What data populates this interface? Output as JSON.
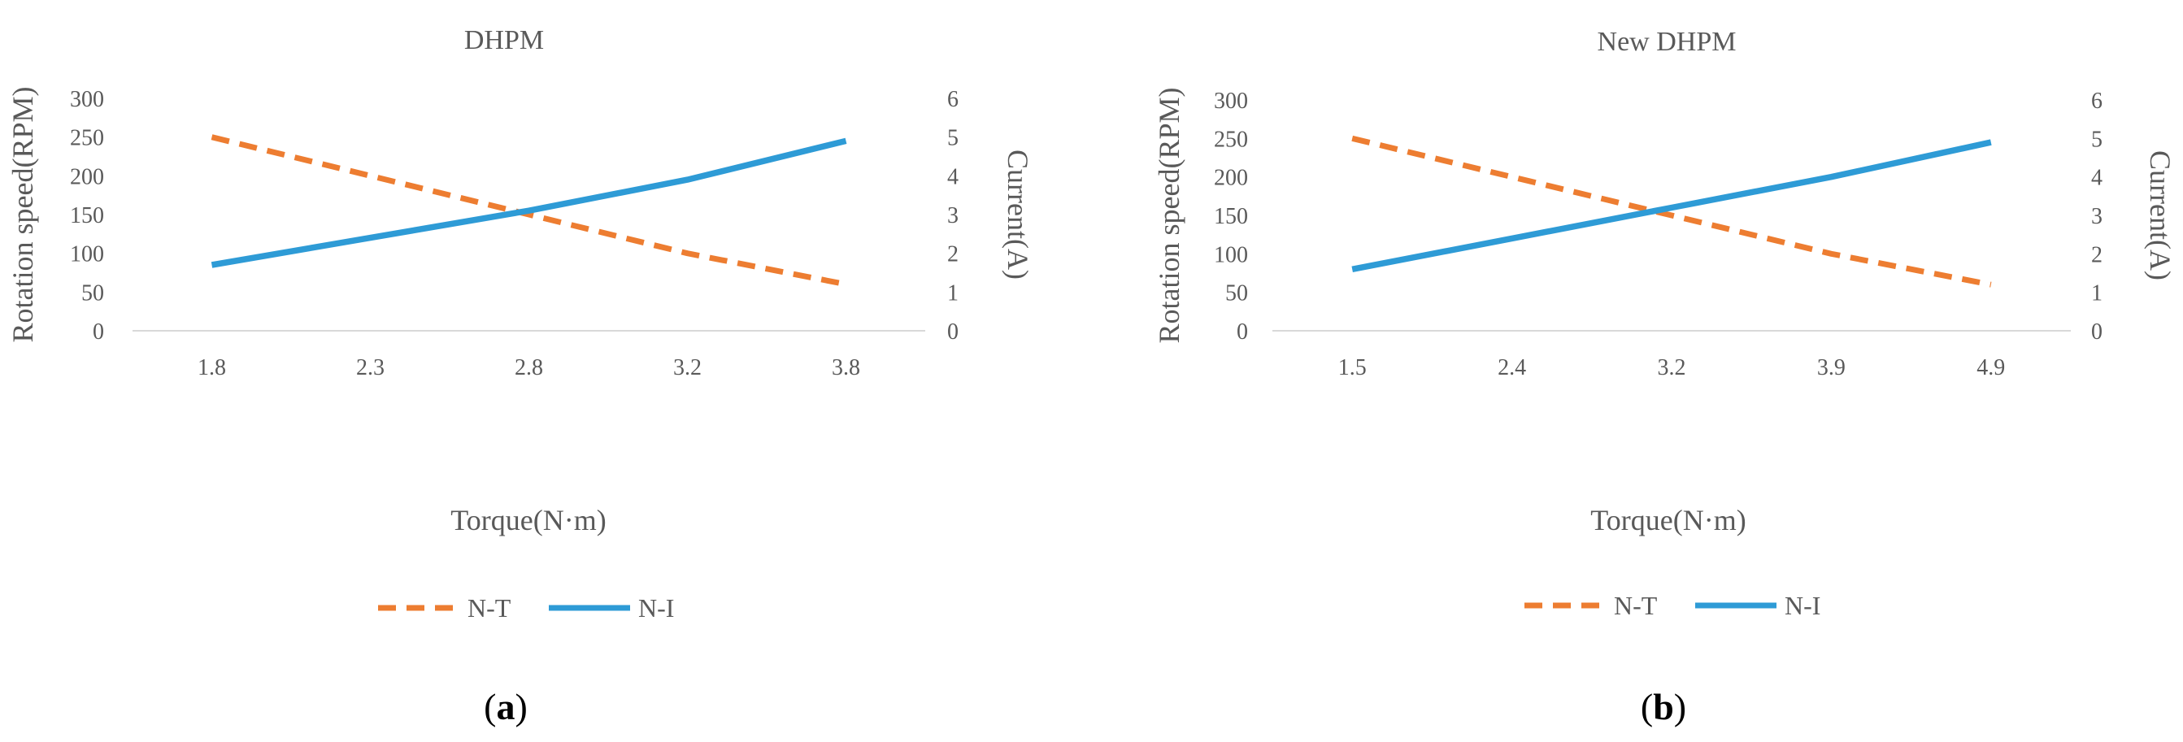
{
  "figure": {
    "panels": [
      "a",
      "b"
    ]
  },
  "colors": {
    "nt": "#ED7D31",
    "ni": "#2E9BD6",
    "text": "#595959",
    "axis": "#D9D9D9"
  },
  "chart_data": [
    {
      "type": "line",
      "title": "DHPM",
      "panel_label": "a",
      "categories": [
        "1.8",
        "2.3",
        "2.8",
        "3.2",
        "3.8"
      ],
      "xlabel": "Torque(N·m)",
      "ylabel": "Rotation speed(RPM)",
      "ylabel_right": "Current(A)",
      "ylim": [
        0,
        300
      ],
      "yticks": [
        0,
        50,
        100,
        150,
        200,
        250,
        300
      ],
      "ylim_right": [
        0,
        6
      ],
      "yticks_right": [
        0,
        1,
        2,
        3,
        4,
        5,
        6
      ],
      "grid": false,
      "legend": "bottom-center",
      "series": [
        {
          "name": "N-T",
          "axis": "left",
          "style": "dashed",
          "values": [
            250,
            200,
            150,
            100,
            60
          ]
        },
        {
          "name": "N-I",
          "axis": "right",
          "style": "solid",
          "values": [
            1.7,
            2.4,
            3.1,
            3.9,
            4.9
          ]
        }
      ]
    },
    {
      "type": "line",
      "title": "New DHPM",
      "panel_label": "b",
      "categories": [
        "1.5",
        "2.4",
        "3.2",
        "3.9",
        "4.9"
      ],
      "xlabel": "Torque(N·m)",
      "ylabel": "Rotation speed(RPM)",
      "ylabel_right": "Current(A)",
      "ylim": [
        0,
        300
      ],
      "yticks": [
        0,
        50,
        100,
        150,
        200,
        250,
        300
      ],
      "ylim_right": [
        0,
        6
      ],
      "yticks_right": [
        0,
        1,
        2,
        3,
        4,
        5,
        6
      ],
      "grid": false,
      "legend": "bottom-center",
      "series": [
        {
          "name": "N-T",
          "axis": "left",
          "style": "dashed",
          "values": [
            250,
            200,
            150,
            100,
            60
          ]
        },
        {
          "name": "N-I",
          "axis": "right",
          "style": "solid",
          "values": [
            1.6,
            2.4,
            3.2,
            4.0,
            4.9
          ]
        }
      ]
    }
  ]
}
